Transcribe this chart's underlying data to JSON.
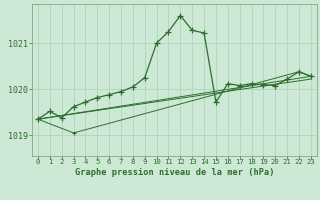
{
  "title": "Graphe pression niveau de la mer (hPa)",
  "bg_color": "#cde8d5",
  "grid_color": "#b0d4bc",
  "line_color": "#2d6e2d",
  "xlim": [
    -0.5,
    23.5
  ],
  "ylim": [
    1018.55,
    1021.85
  ],
  "yticks": [
    1019,
    1020,
    1021
  ],
  "xticks": [
    0,
    1,
    2,
    3,
    4,
    5,
    6,
    7,
    8,
    9,
    10,
    11,
    12,
    13,
    14,
    15,
    16,
    17,
    18,
    19,
    20,
    21,
    22,
    23
  ],
  "main_x": [
    0,
    1,
    2,
    3,
    4,
    5,
    6,
    7,
    8,
    9,
    10,
    11,
    12,
    13,
    14,
    15,
    16,
    17,
    18,
    19,
    20,
    21,
    22,
    23
  ],
  "main_y": [
    1019.35,
    1019.52,
    1019.38,
    1019.62,
    1019.72,
    1019.82,
    1019.88,
    1019.95,
    1020.05,
    1020.25,
    1021.0,
    1021.25,
    1021.6,
    1021.28,
    1021.22,
    1019.72,
    1020.12,
    1020.08,
    1020.12,
    1020.1,
    1020.08,
    1020.22,
    1020.38,
    1020.28
  ],
  "trend1_x": [
    0,
    23
  ],
  "trend1_y": [
    1019.35,
    1020.22
  ],
  "trend2_x": [
    0,
    23
  ],
  "trend2_y": [
    1019.35,
    1020.28
  ],
  "trend3_x": [
    0,
    3,
    22,
    23
  ],
  "trend3_y": [
    1019.35,
    1019.05,
    1020.38,
    1020.28
  ],
  "trend4_x": [
    0,
    3,
    22
  ],
  "trend4_y": [
    1019.35,
    1019.05,
    1020.38
  ]
}
